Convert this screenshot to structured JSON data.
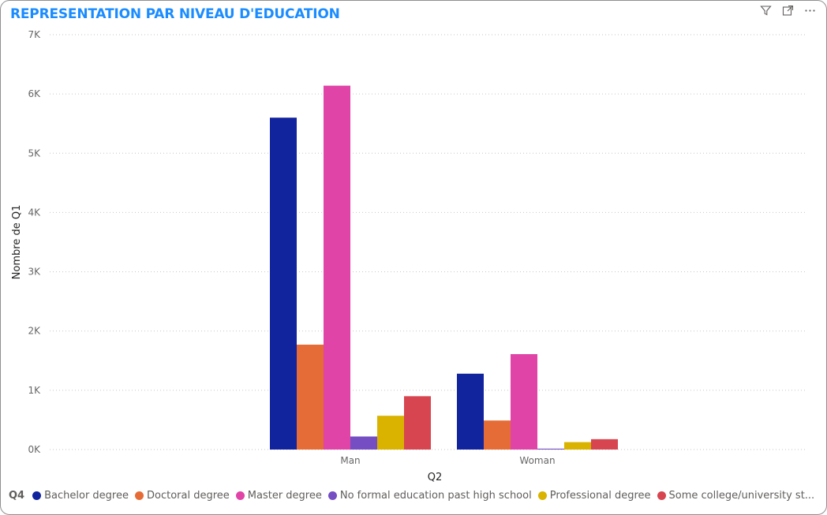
{
  "visual": {
    "title": "REPRESENTATION PAR NIVEAU D'EDUCATION",
    "icons": [
      "filter-icon",
      "focus-mode-icon",
      "more-options-icon"
    ]
  },
  "legend": {
    "title": "Q4",
    "items": [
      {
        "label": "Bachelor degree",
        "color": "#12239e"
      },
      {
        "label": "Doctoral degree",
        "color": "#e66c37"
      },
      {
        "label": "Master degree",
        "color": "#e044a7"
      },
      {
        "label": "No formal education past high school",
        "color": "#744ec2"
      },
      {
        "label": "Professional degree",
        "color": "#d9b300"
      },
      {
        "label": "Some college/university st...",
        "color": "#d64550"
      }
    ]
  },
  "chart_data": {
    "type": "bar",
    "title": "REPRESENTATION PAR NIVEAU D'EDUCATION",
    "xlabel": "Q2",
    "ylabel": "Nombre de Q1",
    "categories": [
      "Man",
      "Woman"
    ],
    "ylim": [
      0,
      7000
    ],
    "yticks": [
      0,
      1000,
      2000,
      3000,
      4000,
      5000,
      6000,
      7000
    ],
    "ytick_labels": [
      "0K",
      "1K",
      "2K",
      "3K",
      "4K",
      "5K",
      "6K",
      "7K"
    ],
    "grid": true,
    "legend_position": "bottom-left",
    "series": [
      {
        "name": "Bachelor degree",
        "color": "#12239e",
        "values": [
          5600,
          1280
        ]
      },
      {
        "name": "Doctoral degree",
        "color": "#e66c37",
        "values": [
          1770,
          490
        ]
      },
      {
        "name": "Master degree",
        "color": "#e044a7",
        "values": [
          6140,
          1610
        ]
      },
      {
        "name": "No formal education past high school",
        "color": "#744ec2",
        "values": [
          220,
          15
        ]
      },
      {
        "name": "Professional degree",
        "color": "#d9b300",
        "values": [
          570,
          125
        ]
      },
      {
        "name": "Some college/university st...",
        "color": "#d64550",
        "values": [
          900,
          175
        ]
      }
    ]
  }
}
